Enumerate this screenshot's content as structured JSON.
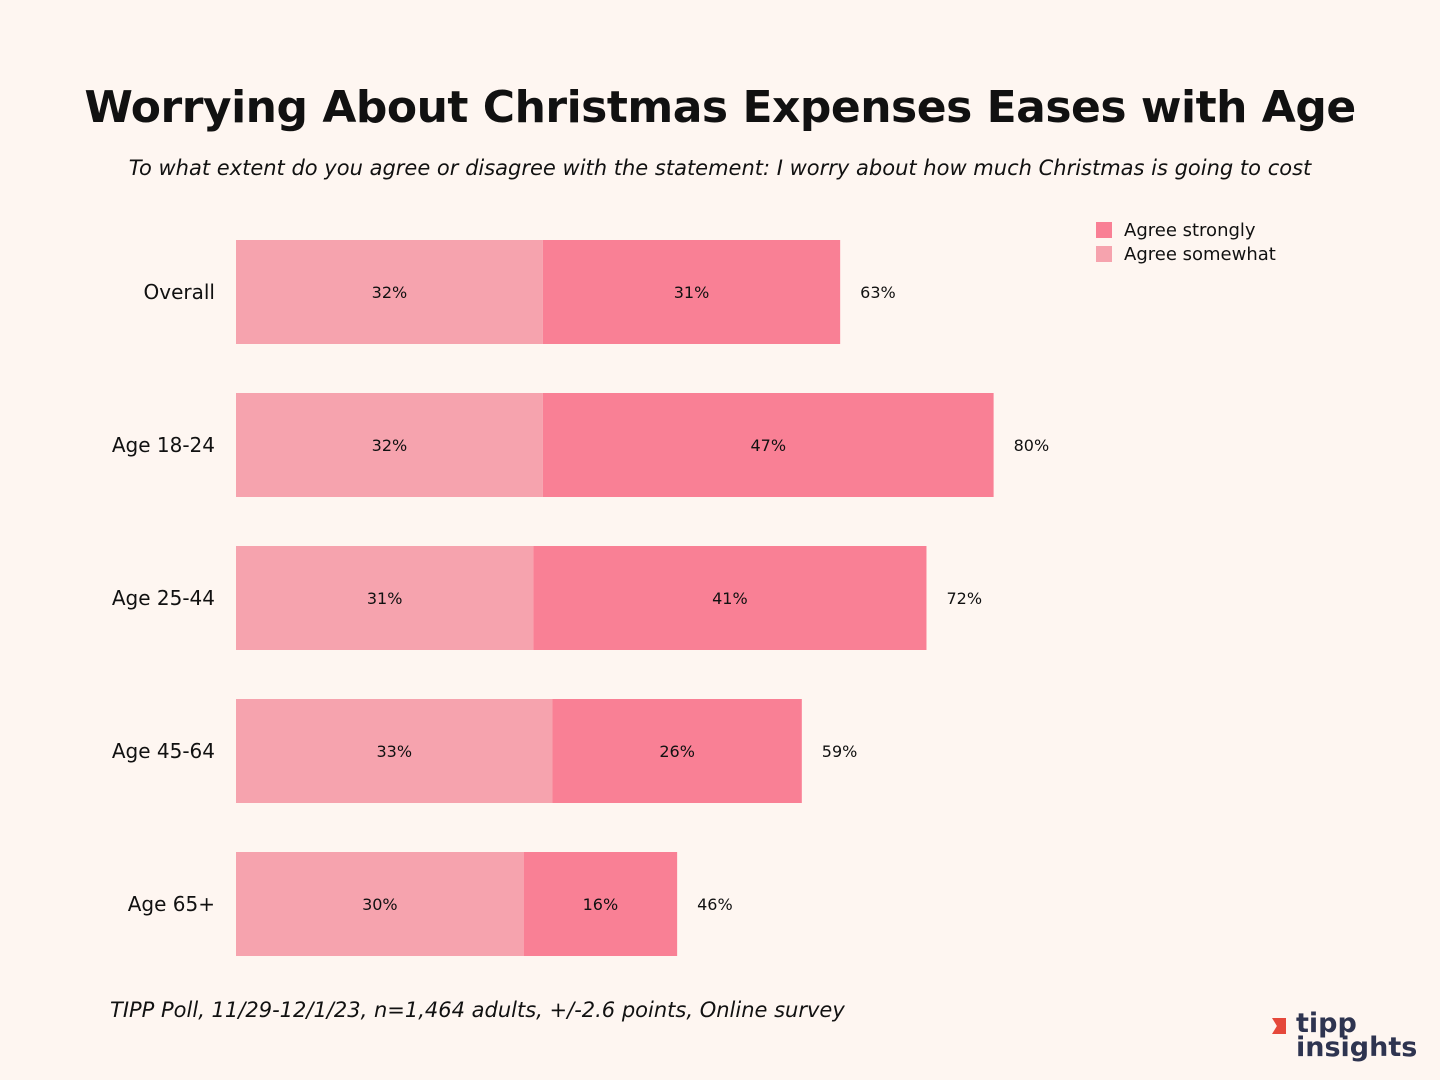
{
  "chart_data": {
    "type": "bar",
    "orientation": "horizontal",
    "stacked": true,
    "title": "Worrying About Christmas Expenses Eases with Age",
    "subtitle": "To what extent do you agree or disagree with the statement: I worry about how much Christmas is going to cost",
    "categories": [
      "Overall",
      "Age 18-24",
      "Age 25-44",
      "Age 45-64",
      "Age 65+"
    ],
    "series": [
      {
        "name": "Agree somewhat",
        "color": "#f6a3ae",
        "values": [
          32,
          32,
          31,
          33,
          30
        ]
      },
      {
        "name": "Agree strongly",
        "color": "#f98095",
        "values": [
          31,
          47,
          41,
          26,
          16
        ]
      }
    ],
    "totals": [
      63,
      80,
      72,
      59,
      46
    ],
    "value_suffix": "%",
    "legend": {
      "position": "top-right",
      "entries": [
        "Agree strongly",
        "Agree somewhat"
      ]
    },
    "xlabel": "",
    "ylabel": "",
    "grid": false
  },
  "footer": "TIPP Poll, 11/29-12/1/23, n=1,464 adults, +/-2.6 points, Online survey",
  "logo": {
    "line1": "tipp",
    "line2": "insights"
  }
}
